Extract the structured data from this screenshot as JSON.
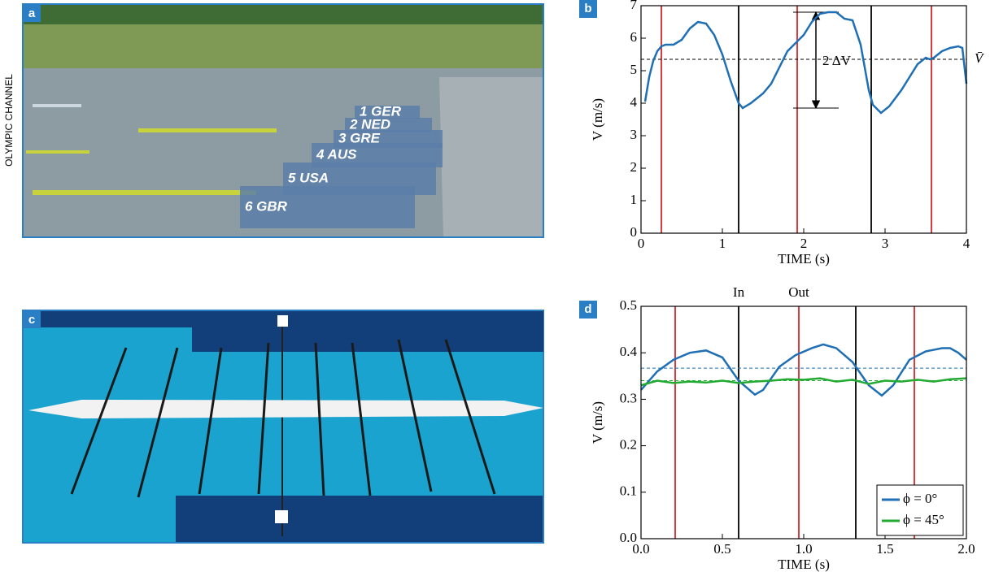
{
  "photo_a": {
    "label": "a",
    "credit": "OLYMPIC CHANNEL",
    "board": [
      "1 GER",
      "2 NED",
      "3 GRE",
      "4 AUS",
      "5 USA",
      "6 GBR"
    ]
  },
  "photo_c": {
    "label": "c"
  },
  "chart_data": [
    {
      "type": "line",
      "panel_label": "b",
      "xlabel": "TIME (s)",
      "ylabel": "V (m/s)",
      "xlim": [
        0,
        4
      ],
      "ylim": [
        0,
        7
      ],
      "xticks": [
        0,
        1,
        2,
        3,
        4
      ],
      "yticks": [
        0,
        1,
        2,
        3,
        4,
        5,
        6,
        7
      ],
      "vlines": [
        {
          "x": 0.25,
          "color": "#d62728"
        },
        {
          "x": 1.2,
          "color": "#000000"
        },
        {
          "x": 1.92,
          "color": "#d62728"
        },
        {
          "x": 2.83,
          "color": "#000000"
        },
        {
          "x": 3.57,
          "color": "#d62728"
        }
      ],
      "hlines": [
        {
          "y": 5.35,
          "color": "#000000",
          "label": "V̄"
        }
      ],
      "arrow": {
        "x": 2.15,
        "from": 3.85,
        "to": 6.8,
        "label": "2 ΔV"
      },
      "series": [
        {
          "color": "#1f6fb5",
          "x": [
            0.05,
            0.1,
            0.15,
            0.2,
            0.25,
            0.3,
            0.4,
            0.5,
            0.6,
            0.7,
            0.8,
            0.9,
            1.0,
            1.1,
            1.2,
            1.25,
            1.35,
            1.5,
            1.6,
            1.7,
            1.8,
            1.9,
            2.0,
            2.1,
            2.2,
            2.3,
            2.4,
            2.5,
            2.6,
            2.7,
            2.8,
            2.85,
            2.95,
            3.05,
            3.2,
            3.3,
            3.4,
            3.5,
            3.55,
            3.6,
            3.7,
            3.8,
            3.9,
            3.95,
            4.0
          ],
          "values": [
            4.05,
            4.8,
            5.3,
            5.6,
            5.75,
            5.8,
            5.8,
            5.95,
            6.3,
            6.5,
            6.45,
            6.1,
            5.5,
            4.7,
            4.0,
            3.85,
            4.0,
            4.3,
            4.6,
            5.1,
            5.6,
            5.85,
            6.1,
            6.5,
            6.75,
            6.8,
            6.8,
            6.6,
            6.55,
            5.8,
            4.4,
            3.95,
            3.7,
            3.9,
            4.4,
            4.8,
            5.2,
            5.4,
            5.35,
            5.4,
            5.6,
            5.7,
            5.75,
            5.7,
            4.6
          ]
        }
      ]
    },
    {
      "type": "line",
      "panel_label": "d",
      "xlabel": "TIME (s)",
      "ylabel": "V (m/s)",
      "xlim": [
        0,
        2
      ],
      "ylim": [
        0,
        0.5
      ],
      "xticks": [
        {
          "value": 0,
          "label": "0.0"
        },
        0.5,
        {
          "value": 1,
          "label": "1.0"
        },
        1.5,
        {
          "value": 2,
          "label": "2.0"
        }
      ],
      "yticks": [
        {
          "value": 0,
          "label": "0.0"
        },
        0.1,
        0.2,
        0.3,
        0.4,
        0.5
      ],
      "vlines": [
        {
          "x": 0.21,
          "color": "#d62728"
        },
        {
          "x": 0.6,
          "color": "#000000"
        },
        {
          "x": 0.97,
          "color": "#d62728"
        },
        {
          "x": 1.32,
          "color": "#000000"
        },
        {
          "x": 1.68,
          "color": "#d62728"
        }
      ],
      "hlines": [
        {
          "y": 0.367,
          "color": "#1f6fb5"
        },
        {
          "y": 0.34,
          "color": "#22aa33"
        }
      ],
      "annotations": [
        "In",
        "Out"
      ],
      "legend": "lower right",
      "series": [
        {
          "name": "ϕ = 0°",
          "color": "#1f6fb5",
          "x": [
            0,
            0.1,
            0.2,
            0.3,
            0.4,
            0.5,
            0.6,
            0.7,
            0.75,
            0.85,
            0.95,
            1.05,
            1.12,
            1.2,
            1.3,
            1.4,
            1.48,
            1.55,
            1.65,
            1.75,
            1.85,
            1.9,
            1.95,
            2.0
          ],
          "values": [
            0.32,
            0.36,
            0.385,
            0.4,
            0.405,
            0.39,
            0.34,
            0.31,
            0.32,
            0.37,
            0.395,
            0.41,
            0.418,
            0.41,
            0.38,
            0.33,
            0.308,
            0.33,
            0.385,
            0.403,
            0.41,
            0.41,
            0.4,
            0.385
          ]
        },
        {
          "name": "ϕ = 45°",
          "color": "#22aa33",
          "x": [
            0,
            0.1,
            0.2,
            0.3,
            0.4,
            0.5,
            0.6,
            0.7,
            0.8,
            0.9,
            1.0,
            1.1,
            1.2,
            1.3,
            1.4,
            1.5,
            1.6,
            1.7,
            1.8,
            1.9,
            2.0
          ],
          "values": [
            0.33,
            0.34,
            0.335,
            0.338,
            0.336,
            0.34,
            0.335,
            0.338,
            0.34,
            0.343,
            0.342,
            0.345,
            0.338,
            0.342,
            0.333,
            0.34,
            0.338,
            0.342,
            0.338,
            0.343,
            0.345
          ]
        }
      ]
    }
  ]
}
